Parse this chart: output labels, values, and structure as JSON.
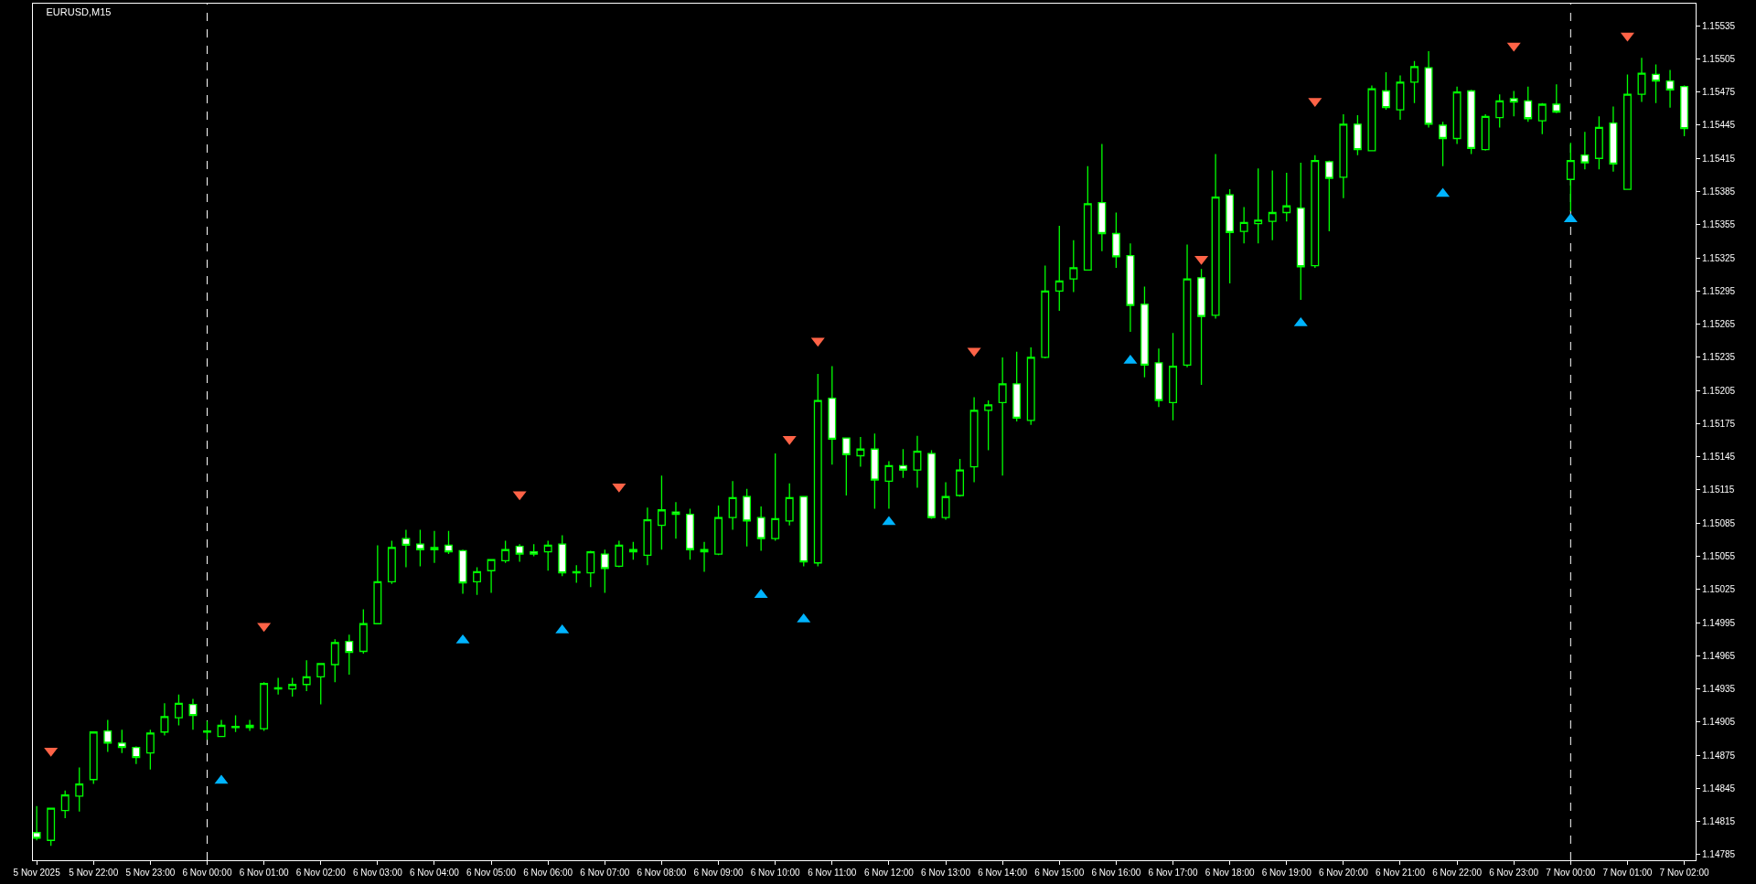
{
  "chart_data": {
    "type": "candlestick",
    "title": "EURUSD,M15",
    "color": "#00ff00",
    "x": [
      "2025-11-05T21:00",
      "2025-11-05T21:15",
      "2025-11-05T21:30",
      "2025-11-05T21:45",
      "2025-11-05T22:00",
      "2025-11-05T22:15",
      "2025-11-05T22:30",
      "2025-11-05T22:45",
      "2025-11-05T23:00",
      "2025-11-05T23:15",
      "2025-11-05T23:30",
      "2025-11-05T23:45",
      "2025-11-06T00:00",
      "2025-11-06T00:15",
      "2025-11-06T00:30",
      "2025-11-06T00:45",
      "2025-11-06T01:00",
      "2025-11-06T01:15",
      "2025-11-06T01:30",
      "2025-11-06T01:45",
      "2025-11-06T02:00",
      "2025-11-06T02:15",
      "2025-11-06T02:30",
      "2025-11-06T02:45",
      "2025-11-06T03:00",
      "2025-11-06T03:15",
      "2025-11-06T03:30",
      "2025-11-06T03:45",
      "2025-11-06T04:00",
      "2025-11-06T04:15",
      "2025-11-06T04:30",
      "2025-11-06T04:45",
      "2025-11-06T05:00",
      "2025-11-06T05:15",
      "2025-11-06T05:30",
      "2025-11-06T05:45",
      "2025-11-06T06:00",
      "2025-11-06T06:15",
      "2025-11-06T06:30",
      "2025-11-06T06:45",
      "2025-11-06T07:00",
      "2025-11-06T07:15",
      "2025-11-06T07:30",
      "2025-11-06T07:45",
      "2025-11-06T08:00",
      "2025-11-06T08:15",
      "2025-11-06T08:30",
      "2025-11-06T08:45",
      "2025-11-06T09:00",
      "2025-11-06T09:15",
      "2025-11-06T09:30",
      "2025-11-06T09:45",
      "2025-11-06T10:00",
      "2025-11-06T10:15",
      "2025-11-06T10:30",
      "2025-11-06T10:45",
      "2025-11-06T11:00",
      "2025-11-06T11:15",
      "2025-11-06T11:30",
      "2025-11-06T11:45",
      "2025-11-06T12:00",
      "2025-11-06T12:15",
      "2025-11-06T12:30",
      "2025-11-06T12:45",
      "2025-11-06T13:00",
      "2025-11-06T13:15",
      "2025-11-06T13:30",
      "2025-11-06T13:45",
      "2025-11-06T14:00",
      "2025-11-06T14:15",
      "2025-11-06T14:30",
      "2025-11-06T14:45",
      "2025-11-06T15:00",
      "2025-11-06T15:15",
      "2025-11-06T15:30",
      "2025-11-06T15:45",
      "2025-11-06T16:00",
      "2025-11-06T16:15",
      "2025-11-06T16:30",
      "2025-11-06T16:45",
      "2025-11-06T17:00",
      "2025-11-06T17:15",
      "2025-11-06T17:30",
      "2025-11-06T17:45",
      "2025-11-06T18:00",
      "2025-11-06T18:15",
      "2025-11-06T18:30",
      "2025-11-06T18:45",
      "2025-11-06T19:00",
      "2025-11-06T19:15",
      "2025-11-06T19:30",
      "2025-11-06T19:45",
      "2025-11-06T20:00",
      "2025-11-06T20:15",
      "2025-11-06T20:30",
      "2025-11-06T20:45",
      "2025-11-06T21:00",
      "2025-11-06T21:15",
      "2025-11-06T21:30",
      "2025-11-06T21:45",
      "2025-11-06T22:00",
      "2025-11-06T22:15",
      "2025-11-06T22:30",
      "2025-11-06T22:45",
      "2025-11-06T23:00",
      "2025-11-06T23:15",
      "2025-11-06T23:30",
      "2025-11-06T23:45",
      "2025-11-07T00:00",
      "2025-11-07T00:15",
      "2025-11-07T00:30",
      "2025-11-07T00:45",
      "2025-11-07T01:00",
      "2025-11-07T01:15",
      "2025-11-07T01:30",
      "2025-11-07T01:45",
      "2025-11-07T02:00"
    ],
    "ohlc": [
      [
        1.14805,
        1.14829,
        1.14798,
        1.148
      ],
      [
        1.14798,
        1.14827,
        1.14793,
        1.14827
      ],
      [
        1.14825,
        1.14843,
        1.14818,
        1.14839
      ],
      [
        1.14838,
        1.14864,
        1.14824,
        1.14849
      ],
      [
        1.14853,
        1.14896,
        1.14849,
        1.14896
      ],
      [
        1.14897,
        1.14907,
        1.14878,
        1.14886
      ],
      [
        1.14886,
        1.14898,
        1.14877,
        1.14882
      ],
      [
        1.14882,
        1.14883,
        1.14867,
        1.14873
      ],
      [
        1.14877,
        1.14898,
        1.14862,
        1.14895
      ],
      [
        1.14896,
        1.14922,
        1.14893,
        1.1491
      ],
      [
        1.14909,
        1.1493,
        1.14902,
        1.14922
      ],
      [
        1.14921,
        1.14926,
        1.14898,
        1.14911
      ],
      [
        1.14896,
        1.14906,
        1.14889,
        1.14897
      ],
      [
        1.14892,
        1.14907,
        1.14892,
        1.14902
      ],
      [
        1.149,
        1.14911,
        1.14896,
        1.14901
      ],
      [
        1.14902,
        1.14907,
        1.14897,
        1.149
      ],
      [
        1.14899,
        1.14941,
        1.14897,
        1.1494
      ],
      [
        1.14935,
        1.14945,
        1.1493,
        1.14936
      ],
      [
        1.14935,
        1.14945,
        1.14928,
        1.14939
      ],
      [
        1.14939,
        1.14961,
        1.14933,
        1.14946
      ],
      [
        1.14946,
        1.14958,
        1.14921,
        1.14958
      ],
      [
        1.14957,
        1.1498,
        1.14941,
        1.14977
      ],
      [
        1.14978,
        1.14984,
        1.14948,
        1.14968
      ],
      [
        1.14969,
        1.15007,
        1.14967,
        1.14994
      ],
      [
        1.14994,
        1.15065,
        1.14994,
        1.15032
      ],
      [
        1.15032,
        1.15069,
        1.1503,
        1.15063
      ],
      [
        1.15071,
        1.15079,
        1.15045,
        1.15065
      ],
      [
        1.15066,
        1.15079,
        1.15046,
        1.15061
      ],
      [
        1.15061,
        1.15078,
        1.15049,
        1.15063
      ],
      [
        1.15065,
        1.15078,
        1.15057,
        1.15059
      ],
      [
        1.1506,
        1.15061,
        1.15021,
        1.15031
      ],
      [
        1.15032,
        1.15045,
        1.1502,
        1.15041
      ],
      [
        1.15042,
        1.15052,
        1.15022,
        1.15052
      ],
      [
        1.15051,
        1.15069,
        1.15049,
        1.15061
      ],
      [
        1.15064,
        1.15066,
        1.1505,
        1.15057
      ],
      [
        1.15059,
        1.15066,
        1.15055,
        1.15057
      ],
      [
        1.15059,
        1.15069,
        1.15042,
        1.15065
      ],
      [
        1.15066,
        1.15074,
        1.15037,
        1.1504
      ],
      [
        1.1504,
        1.15047,
        1.15031,
        1.15041
      ],
      [
        1.1504,
        1.1506,
        1.15027,
        1.15059
      ],
      [
        1.15057,
        1.15061,
        1.15022,
        1.15044
      ],
      [
        1.15046,
        1.15069,
        1.15045,
        1.15065
      ],
      [
        1.15061,
        1.15068,
        1.15052,
        1.15059
      ],
      [
        1.15056,
        1.15099,
        1.15047,
        1.15088
      ],
      [
        1.15083,
        1.15128,
        1.15061,
        1.15097
      ],
      [
        1.15095,
        1.15104,
        1.15071,
        1.15093
      ],
      [
        1.15093,
        1.15098,
        1.15052,
        1.15061
      ],
      [
        1.15061,
        1.15068,
        1.15041,
        1.15059
      ],
      [
        1.15057,
        1.15101,
        1.15056,
        1.1509
      ],
      [
        1.1509,
        1.15123,
        1.15079,
        1.15108
      ],
      [
        1.15109,
        1.15116,
        1.15064,
        1.15087
      ],
      [
        1.1509,
        1.151,
        1.1506,
        1.15071
      ],
      [
        1.15071,
        1.15148,
        1.15069,
        1.15089
      ],
      [
        1.15087,
        1.15121,
        1.15083,
        1.15108
      ],
      [
        1.15109,
        1.15109,
        1.15046,
        1.1505
      ],
      [
        1.15049,
        1.1522,
        1.15046,
        1.15196
      ],
      [
        1.15198,
        1.15227,
        1.15138,
        1.15161
      ],
      [
        1.15162,
        1.15162,
        1.1511,
        1.15147
      ],
      [
        1.15146,
        1.15163,
        1.15136,
        1.15152
      ],
      [
        1.15152,
        1.15166,
        1.15098,
        1.15124
      ],
      [
        1.15123,
        1.15141,
        1.15098,
        1.15137
      ],
      [
        1.15137,
        1.15152,
        1.15126,
        1.15133
      ],
      [
        1.15133,
        1.15164,
        1.15117,
        1.1515
      ],
      [
        1.15148,
        1.15151,
        1.15089,
        1.1509
      ],
      [
        1.1509,
        1.15122,
        1.15088,
        1.15109
      ],
      [
        1.1511,
        1.15143,
        1.15109,
        1.15133
      ],
      [
        1.15136,
        1.15199,
        1.15122,
        1.15187
      ],
      [
        1.15187,
        1.15196,
        1.15151,
        1.15192
      ],
      [
        1.15194,
        1.15235,
        1.15128,
        1.15211
      ],
      [
        1.15211,
        1.1524,
        1.15177,
        1.1518
      ],
      [
        1.15178,
        1.15244,
        1.15174,
        1.15235
      ],
      [
        1.15235,
        1.15318,
        1.15234,
        1.15295
      ],
      [
        1.15295,
        1.15354,
        1.15277,
        1.15304
      ],
      [
        1.15306,
        1.15341,
        1.15294,
        1.15316
      ],
      [
        1.15314,
        1.15408,
        1.15314,
        1.15374
      ],
      [
        1.15375,
        1.15428,
        1.15331,
        1.15347
      ],
      [
        1.15347,
        1.15366,
        1.15316,
        1.15326
      ],
      [
        1.15327,
        1.15338,
        1.15258,
        1.15282
      ],
      [
        1.15283,
        1.15299,
        1.15217,
        1.15228
      ],
      [
        1.1523,
        1.15243,
        1.1519,
        1.15196
      ],
      [
        1.15194,
        1.15257,
        1.15178,
        1.15227
      ],
      [
        1.15228,
        1.15337,
        1.15226,
        1.15306
      ],
      [
        1.15307,
        1.15315,
        1.1521,
        1.15272
      ],
      [
        1.15273,
        1.15419,
        1.1527,
        1.1538
      ],
      [
        1.15382,
        1.15387,
        1.15302,
        1.15348
      ],
      [
        1.15349,
        1.15371,
        1.15338,
        1.15357
      ],
      [
        1.15356,
        1.15406,
        1.15338,
        1.15359
      ],
      [
        1.15358,
        1.15404,
        1.15341,
        1.15366
      ],
      [
        1.15366,
        1.15402,
        1.15358,
        1.15372
      ],
      [
        1.1537,
        1.15411,
        1.15287,
        1.15317
      ],
      [
        1.15318,
        1.15418,
        1.15316,
        1.15413
      ],
      [
        1.15412,
        1.15413,
        1.15349,
        1.15397
      ],
      [
        1.15398,
        1.15455,
        1.15379,
        1.15446
      ],
      [
        1.15446,
        1.15454,
        1.15418,
        1.15423
      ],
      [
        1.15422,
        1.15481,
        1.15422,
        1.15478
      ],
      [
        1.15476,
        1.15493,
        1.15459,
        1.15461
      ],
      [
        1.15459,
        1.1549,
        1.1545,
        1.15484
      ],
      [
        1.15484,
        1.15503,
        1.15465,
        1.15498
      ],
      [
        1.15497,
        1.15512,
        1.15443,
        1.15446
      ],
      [
        1.15445,
        1.15448,
        1.15408,
        1.15433
      ],
      [
        1.15433,
        1.1548,
        1.15428,
        1.15475
      ],
      [
        1.15476,
        1.15477,
        1.15419,
        1.15424
      ],
      [
        1.15423,
        1.15455,
        1.15422,
        1.15453
      ],
      [
        1.15452,
        1.15473,
        1.15443,
        1.15467
      ],
      [
        1.15469,
        1.15476,
        1.15453,
        1.15466
      ],
      [
        1.15467,
        1.1548,
        1.15448,
        1.15451
      ],
      [
        1.15449,
        1.15465,
        1.15437,
        1.15464
      ],
      [
        1.15464,
        1.15482,
        1.15456,
        1.15457
      ],
      [
        1.15396,
        1.15429,
        1.15367,
        1.15413
      ],
      [
        1.15418,
        1.15439,
        1.15405,
        1.15411
      ],
      [
        1.15415,
        1.15453,
        1.15405,
        1.15443
      ],
      [
        1.15447,
        1.15462,
        1.15403,
        1.1541
      ],
      [
        1.15387,
        1.15491,
        1.15387,
        1.15473
      ],
      [
        1.15473,
        1.15506,
        1.15466,
        1.15492
      ],
      [
        1.15491,
        1.155,
        1.15465,
        1.15485
      ],
      [
        1.15485,
        1.15495,
        1.15461,
        1.15477
      ],
      [
        1.1548,
        1.15481,
        1.15435,
        1.15442
      ]
    ],
    "series": [
      {
        "type": "scatter",
        "marker": "triangle-down",
        "color": "#ff6347",
        "x": [
          "2025-11-05T21:15",
          "2025-11-06T01:00",
          "2025-11-06T05:30",
          "2025-11-06T07:15",
          "2025-11-06T10:15",
          "2025-11-06T10:45",
          "2025-11-06T13:30",
          "2025-11-06T17:30",
          "2025-11-06T19:30",
          "2025-11-06T23:00",
          "2025-11-07T01:00"
        ],
        "values": [
          1.14879,
          1.14992,
          1.15111,
          1.15118,
          1.15161,
          1.1525,
          1.15241,
          1.15324,
          1.15467,
          1.15517,
          1.15526
        ]
      },
      {
        "type": "scatter",
        "marker": "triangle",
        "color": "#00b4ff",
        "x": [
          "2025-11-06T00:15",
          "2025-11-06T04:30",
          "2025-11-06T06:15",
          "2025-11-06T09:45",
          "2025-11-06T10:30",
          "2025-11-06T12:00",
          "2025-11-06T16:15",
          "2025-11-06T19:15",
          "2025-11-06T21:45",
          "2025-11-07T00:00"
        ],
        "values": [
          1.14852,
          1.14979,
          1.14988,
          1.1502,
          1.14998,
          1.15086,
          1.15232,
          1.15266,
          1.15383,
          1.1536
        ]
      }
    ],
    "xlim": [
      "2025-11-05T20:56",
      "2025-11-07T02:12"
    ],
    "xticks": [
      {
        "value": "2025-11-05T21:00",
        "label": "5 Nov 2025"
      },
      {
        "value": "2025-11-05T22:00",
        "label": "5 Nov 22:00"
      },
      {
        "value": "2025-11-05T23:00",
        "label": "5 Nov 23:00"
      },
      {
        "value": "2025-11-06T00:00",
        "label": "6 Nov 00:00"
      },
      {
        "value": "2025-11-06T01:00",
        "label": "6 Nov 01:00"
      },
      {
        "value": "2025-11-06T02:00",
        "label": "6 Nov 02:00"
      },
      {
        "value": "2025-11-06T03:00",
        "label": "6 Nov 03:00"
      },
      {
        "value": "2025-11-06T04:00",
        "label": "6 Nov 04:00"
      },
      {
        "value": "2025-11-06T05:00",
        "label": "6 Nov 05:00"
      },
      {
        "value": "2025-11-06T06:00",
        "label": "6 Nov 06:00"
      },
      {
        "value": "2025-11-06T07:00",
        "label": "6 Nov 07:00"
      },
      {
        "value": "2025-11-06T08:00",
        "label": "6 Nov 08:00"
      },
      {
        "value": "2025-11-06T09:00",
        "label": "6 Nov 09:00"
      },
      {
        "value": "2025-11-06T10:00",
        "label": "6 Nov 10:00"
      },
      {
        "value": "2025-11-06T11:00",
        "label": "6 Nov 11:00"
      },
      {
        "value": "2025-11-06T12:00",
        "label": "6 Nov 12:00"
      },
      {
        "value": "2025-11-06T13:00",
        "label": "6 Nov 13:00"
      },
      {
        "value": "2025-11-06T14:00",
        "label": "6 Nov 14:00"
      },
      {
        "value": "2025-11-06T15:00",
        "label": "6 Nov 15:00"
      },
      {
        "value": "2025-11-06T16:00",
        "label": "6 Nov 16:00"
      },
      {
        "value": "2025-11-06T17:00",
        "label": "6 Nov 17:00"
      },
      {
        "value": "2025-11-06T18:00",
        "label": "6 Nov 18:00"
      },
      {
        "value": "2025-11-06T19:00",
        "label": "6 Nov 19:00"
      },
      {
        "value": "2025-11-06T20:00",
        "label": "6 Nov 20:00"
      },
      {
        "value": "2025-11-06T21:00",
        "label": "6 Nov 21:00"
      },
      {
        "value": "2025-11-06T22:00",
        "label": "6 Nov 22:00"
      },
      {
        "value": "2025-11-06T23:00",
        "label": "6 Nov 23:00"
      },
      {
        "value": "2025-11-07T00:00",
        "label": "7 Nov 00:00"
      },
      {
        "value": "2025-11-07T01:00",
        "label": "7 Nov 01:00"
      },
      {
        "value": "2025-11-07T02:00",
        "label": "7 Nov 02:00"
      }
    ],
    "ylim": [
      1.1478,
      1.15555
    ],
    "yticks": [
      1.14785,
      1.14815,
      1.14845,
      1.14875,
      1.14905,
      1.14935,
      1.14965,
      1.14995,
      1.15025,
      1.15055,
      1.15085,
      1.15115,
      1.15145,
      1.15175,
      1.15205,
      1.15235,
      1.15265,
      1.15295,
      1.15325,
      1.15355,
      1.15385,
      1.15415,
      1.15445,
      1.15475,
      1.15505,
      1.15535
    ],
    "ref_lines": [
      {
        "axis": "x",
        "value": "2025-11-06T00:00",
        "label": null,
        "color": "#ffffff",
        "line_style": "dashed"
      },
      {
        "axis": "x",
        "value": "2025-11-07T00:00",
        "label": null,
        "color": "#ffffff",
        "line_style": "dashed"
      }
    ]
  }
}
